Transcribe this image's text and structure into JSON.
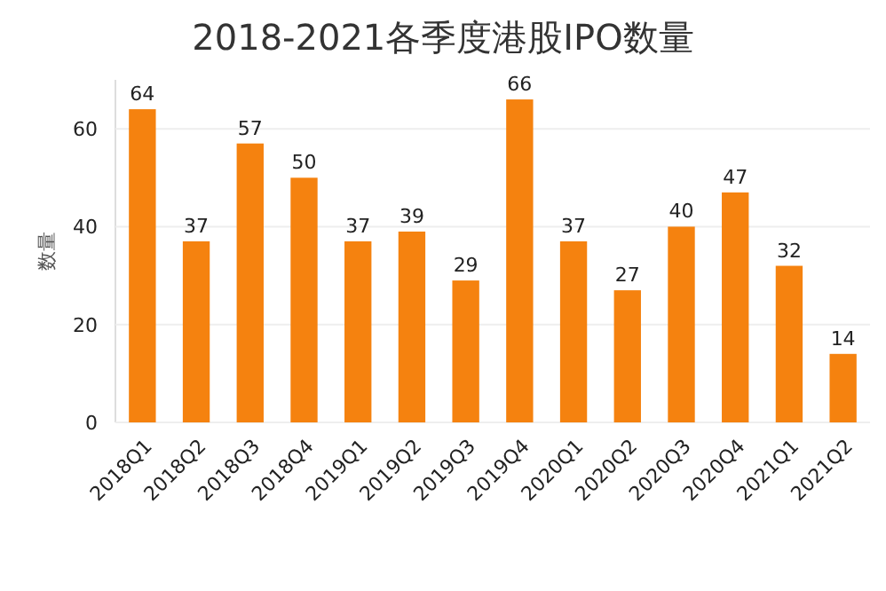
{
  "chart_data": {
    "type": "bar",
    "title": "2018-2021各季度港股IPO数量",
    "ylabel": "数量",
    "categories": [
      "2018Q1",
      "2018Q2",
      "2018Q3",
      "2018Q4",
      "2019Q1",
      "2019Q2",
      "2019Q3",
      "2019Q4",
      "2020Q1",
      "2020Q2",
      "2020Q3",
      "2020Q4",
      "2021Q1",
      "2021Q2"
    ],
    "values": [
      64,
      37,
      57,
      50,
      37,
      39,
      29,
      66,
      37,
      27,
      40,
      47,
      32,
      14
    ],
    "color": "#f5820f",
    "ylim": [
      0,
      70
    ],
    "yticks": [
      0,
      20,
      40,
      60
    ],
    "grid": "y",
    "data_labels": true
  }
}
